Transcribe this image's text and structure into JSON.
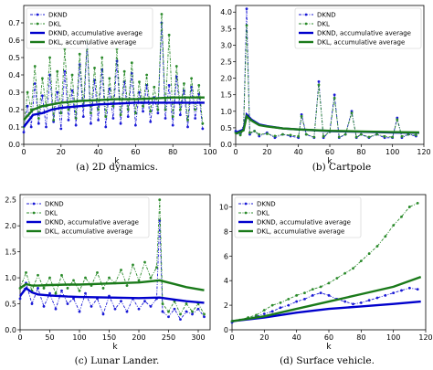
{
  "colors": {
    "dknd": "#1a1ad6",
    "dkl": "#2a8a2a",
    "dknd_avg": "#0000cc",
    "dkl_avg": "#1a7a1a"
  },
  "chart_data": [
    {
      "type": "line",
      "caption": "(a) 2D dynamics.",
      "xlabel": "k",
      "xlim": [
        0,
        100
      ],
      "ylim": [
        0,
        0.8
      ],
      "xticks": [
        0,
        20,
        40,
        60,
        80,
        100
      ],
      "yticks": [
        0.0,
        0.1,
        0.2,
        0.3,
        0.4,
        0.5,
        0.6,
        0.7
      ],
      "ytick_labels": [
        "0.0",
        "0.1",
        "0.2",
        "0.3",
        "0.4",
        "0.5",
        "0.6",
        "0.7"
      ],
      "legend": [
        "DKND",
        "DKL",
        "DKND, accumulative average",
        "DKL, accumulative average"
      ],
      "legend_position": "top-left",
      "series": [
        {
          "name": "DKND",
          "style": "dashdot-marker",
          "x": [
            0,
            2,
            4,
            6,
            8,
            10,
            12,
            14,
            16,
            18,
            20,
            22,
            24,
            26,
            28,
            30,
            32,
            34,
            36,
            38,
            40,
            42,
            44,
            46,
            48,
            50,
            52,
            54,
            56,
            58,
            60,
            62,
            64,
            66,
            68,
            70,
            72,
            74,
            76,
            78,
            80,
            82,
            84,
            86,
            88,
            90,
            92,
            94,
            96
          ],
          "values": [
            0.07,
            0.22,
            0.1,
            0.35,
            0.12,
            0.28,
            0.1,
            0.4,
            0.13,
            0.3,
            0.09,
            0.42,
            0.14,
            0.31,
            0.11,
            0.46,
            0.16,
            0.58,
            0.12,
            0.37,
            0.14,
            0.43,
            0.1,
            0.32,
            0.15,
            0.48,
            0.12,
            0.36,
            0.16,
            0.41,
            0.11,
            0.3,
            0.19,
            0.34,
            0.13,
            0.27,
            0.18,
            0.7,
            0.15,
            0.34,
            0.11,
            0.39,
            0.17,
            0.31,
            0.1,
            0.33,
            0.15,
            0.29,
            0.09
          ]
        },
        {
          "name": "DKL",
          "style": "dashdot-marker",
          "x": [
            0,
            2,
            4,
            6,
            8,
            10,
            12,
            14,
            16,
            18,
            20,
            22,
            24,
            26,
            28,
            30,
            32,
            34,
            36,
            38,
            40,
            42,
            44,
            46,
            48,
            50,
            52,
            54,
            56,
            58,
            60,
            62,
            64,
            66,
            68,
            70,
            72,
            74,
            76,
            78,
            80,
            82,
            84,
            86,
            88,
            90,
            92,
            94,
            96
          ],
          "values": [
            0.1,
            0.3,
            0.2,
            0.45,
            0.15,
            0.38,
            0.22,
            0.5,
            0.14,
            0.42,
            0.18,
            0.55,
            0.2,
            0.4,
            0.15,
            0.52,
            0.22,
            0.6,
            0.18,
            0.44,
            0.2,
            0.5,
            0.16,
            0.38,
            0.22,
            0.55,
            0.17,
            0.42,
            0.2,
            0.47,
            0.18,
            0.36,
            0.22,
            0.4,
            0.19,
            0.33,
            0.2,
            0.75,
            0.2,
            0.63,
            0.16,
            0.45,
            0.2,
            0.35,
            0.14,
            0.38,
            0.2,
            0.34,
            0.12
          ]
        },
        {
          "name": "DKND, accumulative average",
          "style": "solid",
          "x": [
            0,
            5,
            10,
            15,
            20,
            30,
            40,
            50,
            60,
            70,
            80,
            90,
            97
          ],
          "values": [
            0.1,
            0.17,
            0.18,
            0.2,
            0.21,
            0.22,
            0.23,
            0.235,
            0.24,
            0.24,
            0.24,
            0.24,
            0.24
          ]
        },
        {
          "name": "DKL, accumulative average",
          "style": "solid",
          "x": [
            0,
            5,
            10,
            15,
            20,
            30,
            40,
            50,
            60,
            70,
            80,
            90,
            97
          ],
          "values": [
            0.14,
            0.2,
            0.22,
            0.23,
            0.24,
            0.25,
            0.255,
            0.26,
            0.26,
            0.265,
            0.27,
            0.27,
            0.27
          ]
        }
      ]
    },
    {
      "type": "line",
      "caption": "(b) Cartpole",
      "xlabel": "k",
      "xlim": [
        0,
        120
      ],
      "ylim": [
        0,
        4.2
      ],
      "xticks": [
        0,
        20,
        40,
        60,
        80,
        100,
        120
      ],
      "yticks": [
        0.0,
        0.5,
        1.0,
        1.5,
        2.0,
        2.5,
        3.0,
        3.5,
        4.0
      ],
      "ytick_labels": [
        "0.0",
        "0.5",
        "1.0",
        "1.5",
        "2.0",
        "2.5",
        "3.0",
        "3.5",
        "4.0"
      ],
      "legend": [
        "DKND",
        "DKL",
        "DKND, accumulative average",
        "DKL, accumulative average"
      ],
      "legend_position": "top-right",
      "series": [
        {
          "name": "DKND",
          "style": "dashdot-marker",
          "x": [
            0,
            3,
            5,
            7,
            9,
            12,
            15,
            20,
            25,
            30,
            35,
            40,
            42,
            45,
            50,
            53,
            56,
            60,
            63,
            66,
            70,
            74,
            77,
            80,
            85,
            90,
            95,
            100,
            103,
            106,
            110,
            115
          ],
          "values": [
            0.4,
            0.3,
            0.5,
            4.1,
            0.3,
            0.4,
            0.25,
            0.35,
            0.2,
            0.3,
            0.25,
            0.2,
            0.9,
            0.3,
            0.2,
            1.9,
            0.2,
            0.4,
            1.5,
            0.2,
            0.3,
            1.0,
            0.2,
            0.3,
            0.2,
            0.3,
            0.2,
            0.2,
            0.8,
            0.2,
            0.3,
            0.25
          ]
        },
        {
          "name": "DKL",
          "style": "dashdot-marker",
          "x": [
            0,
            3,
            5,
            7,
            9,
            12,
            15,
            20,
            25,
            30,
            35,
            40,
            42,
            45,
            50,
            53,
            56,
            60,
            63,
            66,
            70,
            74,
            77,
            80,
            85,
            90,
            95,
            100,
            103,
            106,
            110,
            115
          ],
          "values": [
            0.35,
            0.28,
            0.45,
            3.6,
            0.35,
            0.4,
            0.3,
            0.32,
            0.25,
            0.3,
            0.28,
            0.24,
            0.85,
            0.3,
            0.22,
            1.8,
            0.24,
            0.38,
            1.4,
            0.22,
            0.3,
            0.95,
            0.22,
            0.3,
            0.22,
            0.3,
            0.24,
            0.22,
            0.75,
            0.24,
            0.3,
            0.28
          ]
        },
        {
          "name": "DKND, accumulative average",
          "style": "solid",
          "x": [
            0,
            5,
            7,
            10,
            15,
            20,
            30,
            40,
            60,
            80,
            100,
            117
          ],
          "values": [
            0.35,
            0.45,
            0.9,
            0.75,
            0.6,
            0.55,
            0.48,
            0.45,
            0.4,
            0.38,
            0.36,
            0.35
          ]
        },
        {
          "name": "DKL, accumulative average",
          "style": "solid",
          "x": [
            0,
            5,
            7,
            10,
            15,
            20,
            30,
            40,
            60,
            80,
            100,
            117
          ],
          "values": [
            0.32,
            0.42,
            0.85,
            0.72,
            0.58,
            0.54,
            0.48,
            0.45,
            0.41,
            0.39,
            0.37,
            0.36
          ]
        }
      ]
    },
    {
      "type": "line",
      "caption": "(c) Lunar Lander.",
      "xlabel": "k",
      "xlim": [
        0,
        320
      ],
      "ylim": [
        0,
        2.6
      ],
      "xticks": [
        0,
        50,
        100,
        150,
        200,
        250,
        300
      ],
      "yticks": [
        0.0,
        0.5,
        1.0,
        1.5,
        2.0
      ],
      "ytick_labels": [
        "0.0",
        "0.5",
        "1.0",
        "1.5",
        "2.0"
      ],
      "y_offset_label": "2.5",
      "legend": [
        "DKND",
        "DKL",
        "DKND, accumulative average",
        "DKL, accumulative average"
      ],
      "legend_position": "top-left",
      "series": [
        {
          "name": "DKND",
          "style": "dashdot-marker",
          "x": [
            0,
            10,
            20,
            30,
            40,
            50,
            60,
            70,
            80,
            90,
            100,
            110,
            120,
            130,
            140,
            150,
            160,
            170,
            180,
            190,
            200,
            210,
            220,
            230,
            235,
            240,
            250,
            260,
            270,
            280,
            290,
            300,
            310
          ],
          "values": [
            0.6,
            0.9,
            0.5,
            0.8,
            0.45,
            0.7,
            0.4,
            0.75,
            0.5,
            0.6,
            0.35,
            0.7,
            0.45,
            0.6,
            0.3,
            0.65,
            0.4,
            0.55,
            0.35,
            0.6,
            0.4,
            0.55,
            0.45,
            0.6,
            2.1,
            0.35,
            0.25,
            0.4,
            0.2,
            0.35,
            0.3,
            0.4,
            0.25
          ]
        },
        {
          "name": "DKL",
          "style": "dashdot-marker",
          "x": [
            0,
            10,
            20,
            30,
            40,
            50,
            60,
            70,
            80,
            90,
            100,
            110,
            120,
            130,
            140,
            150,
            160,
            170,
            180,
            190,
            200,
            210,
            220,
            230,
            235,
            240,
            250,
            260,
            270,
            280,
            290,
            300,
            310
          ],
          "values": [
            0.8,
            1.1,
            0.75,
            1.05,
            0.8,
            1.0,
            0.7,
            1.05,
            0.8,
            0.95,
            0.75,
            1.0,
            0.85,
            1.1,
            0.8,
            1.0,
            0.9,
            1.15,
            0.85,
            1.25,
            0.95,
            1.3,
            1.0,
            1.2,
            2.5,
            0.5,
            0.35,
            0.55,
            0.3,
            0.5,
            0.35,
            0.5,
            0.3
          ]
        },
        {
          "name": "DKND, accumulative average",
          "style": "solid",
          "x": [
            0,
            10,
            20,
            30,
            50,
            80,
            100,
            150,
            200,
            235,
            260,
            280,
            310
          ],
          "values": [
            0.65,
            0.8,
            0.72,
            0.68,
            0.66,
            0.64,
            0.63,
            0.62,
            0.61,
            0.62,
            0.58,
            0.55,
            0.52
          ]
        },
        {
          "name": "DKL, accumulative average",
          "style": "solid",
          "x": [
            0,
            10,
            20,
            30,
            50,
            80,
            100,
            150,
            200,
            235,
            260,
            280,
            310
          ],
          "values": [
            0.8,
            0.88,
            0.85,
            0.85,
            0.86,
            0.87,
            0.87,
            0.89,
            0.91,
            0.95,
            0.88,
            0.82,
            0.76
          ]
        }
      ]
    },
    {
      "type": "line",
      "caption": "(d) Surface vehicle.",
      "xlabel": "k",
      "xlim": [
        0,
        120
      ],
      "ylim": [
        0,
        11
      ],
      "xticks": [
        0,
        20,
        40,
        60,
        80,
        100,
        120
      ],
      "yticks": [
        0,
        2,
        4,
        6,
        8,
        10
      ],
      "ytick_labels": [
        "0",
        "2",
        "4",
        "6",
        "8",
        "10"
      ],
      "legend": [
        "DKND",
        "DKL",
        "DKND, accumulative average",
        "DKL, accumulative average"
      ],
      "legend_position": "top-left",
      "series": [
        {
          "name": "DKND",
          "style": "dashdot-marker",
          "x": [
            0,
            5,
            10,
            15,
            20,
            25,
            30,
            35,
            40,
            45,
            50,
            55,
            60,
            65,
            70,
            75,
            80,
            85,
            90,
            95,
            100,
            105,
            110,
            115
          ],
          "values": [
            0.6,
            0.8,
            0.9,
            1.1,
            1.3,
            1.5,
            1.8,
            2.0,
            2.3,
            2.5,
            2.8,
            3.0,
            2.8,
            2.5,
            2.3,
            2.1,
            2.2,
            2.4,
            2.6,
            2.8,
            3.0,
            3.2,
            3.4,
            3.3
          ]
        },
        {
          "name": "DKL",
          "style": "dashdot-marker",
          "x": [
            0,
            5,
            10,
            15,
            20,
            25,
            30,
            35,
            40,
            45,
            50,
            55,
            60,
            65,
            70,
            75,
            80,
            85,
            90,
            95,
            100,
            105,
            110,
            115
          ],
          "values": [
            0.7,
            0.8,
            1.0,
            1.2,
            1.6,
            2.0,
            2.2,
            2.5,
            2.8,
            3.0,
            3.3,
            3.5,
            3.8,
            4.2,
            4.6,
            5.0,
            5.6,
            6.2,
            6.8,
            7.6,
            8.5,
            9.2,
            10.0,
            10.3
          ]
        },
        {
          "name": "DKND, accumulative average",
          "style": "solid",
          "x": [
            0,
            20,
            40,
            60,
            80,
            100,
            117
          ],
          "values": [
            0.7,
            1.0,
            1.4,
            1.7,
            1.9,
            2.1,
            2.3
          ]
        },
        {
          "name": "DKL, accumulative average",
          "style": "solid",
          "x": [
            0,
            20,
            40,
            60,
            80,
            100,
            117
          ],
          "values": [
            0.7,
            1.1,
            1.7,
            2.3,
            2.9,
            3.5,
            4.3
          ]
        }
      ]
    }
  ]
}
